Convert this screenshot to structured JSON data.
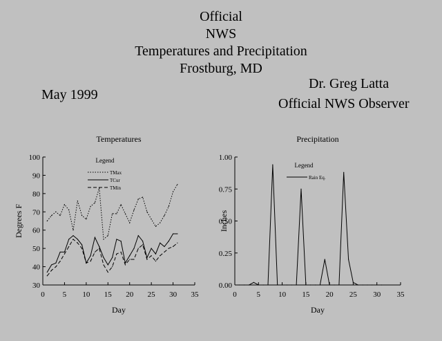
{
  "header": {
    "title_lines": [
      "Official",
      "NWS",
      "Temperatures and Precipitation",
      "Frostburg, MD"
    ],
    "date": "May 1999",
    "observer_name": "Dr. Greg Latta",
    "observer_role": "Official NWS Observer"
  },
  "chart_data": [
    {
      "type": "line",
      "title": "Temperatures",
      "xlabel": "Day",
      "ylabel": "Degrees F",
      "xlim": [
        0,
        35
      ],
      "ylim": [
        30,
        100
      ],
      "x_ticks": [
        "0",
        "5",
        "10",
        "15",
        "20",
        "25",
        "30",
        "35"
      ],
      "y_ticks": [
        "30",
        "40",
        "50",
        "60",
        "70",
        "80",
        "90",
        "100"
      ],
      "grid": false,
      "legend": {
        "title": "Legend",
        "position": "top-center"
      },
      "x": [
        1,
        2,
        3,
        4,
        5,
        6,
        7,
        8,
        9,
        10,
        11,
        12,
        13,
        14,
        15,
        16,
        17,
        18,
        19,
        20,
        21,
        22,
        23,
        24,
        25,
        26,
        27,
        28,
        29,
        30,
        31
      ],
      "series": [
        {
          "name": "TMax",
          "style": "dotted",
          "values": [
            65,
            68,
            70,
            68,
            74,
            71,
            60,
            76,
            68,
            66,
            73,
            75,
            83,
            55,
            57,
            69,
            69,
            74,
            69,
            64,
            71,
            77,
            78,
            70,
            66,
            62,
            64,
            68,
            73,
            81,
            85
          ]
        },
        {
          "name": "TCur",
          "style": "solid",
          "values": [
            37,
            41,
            42,
            48,
            48,
            55,
            57,
            55,
            52,
            42,
            46,
            56,
            51,
            45,
            41,
            45,
            55,
            54,
            42,
            46,
            50,
            57,
            54,
            45,
            50,
            47,
            53,
            51,
            54,
            58,
            58
          ]
        },
        {
          "name": "TMin",
          "style": "dashed",
          "values": [
            35,
            38,
            40,
            43,
            47,
            51,
            55,
            53,
            50,
            42,
            43,
            48,
            50,
            41,
            37,
            40,
            47,
            48,
            41,
            44,
            44,
            50,
            52,
            44,
            46,
            43,
            46,
            48,
            50,
            51,
            53
          ]
        }
      ]
    },
    {
      "type": "line",
      "title": "Precipitation",
      "xlabel": "Day",
      "ylabel": "Inches",
      "xlim": [
        0,
        35
      ],
      "ylim": [
        0,
        1
      ],
      "x_ticks": [
        "0",
        "5",
        "10",
        "15",
        "20",
        "25",
        "30",
        "35"
      ],
      "y_ticks": [
        "0.00",
        "0.25",
        "0.50",
        "0.75",
        "1.00"
      ],
      "grid": false,
      "legend": {
        "title": "Legend",
        "position": "top-center"
      },
      "x": [
        1,
        2,
        3,
        4,
        5,
        6,
        7,
        8,
        9,
        10,
        11,
        12,
        13,
        14,
        15,
        16,
        17,
        18,
        19,
        20,
        21,
        22,
        23,
        24,
        25,
        26,
        27,
        28,
        29,
        30,
        31
      ],
      "series": [
        {
          "name": "Rain Eq.",
          "style": "solid",
          "values": [
            0,
            0,
            0,
            0.02,
            0,
            0,
            0,
            0.94,
            0,
            0,
            0,
            0,
            0,
            0.75,
            0,
            0,
            0,
            0,
            0.2,
            0,
            0,
            0,
            0.88,
            0.2,
            0.02,
            0,
            0,
            0,
            0,
            0,
            0
          ]
        }
      ]
    }
  ]
}
